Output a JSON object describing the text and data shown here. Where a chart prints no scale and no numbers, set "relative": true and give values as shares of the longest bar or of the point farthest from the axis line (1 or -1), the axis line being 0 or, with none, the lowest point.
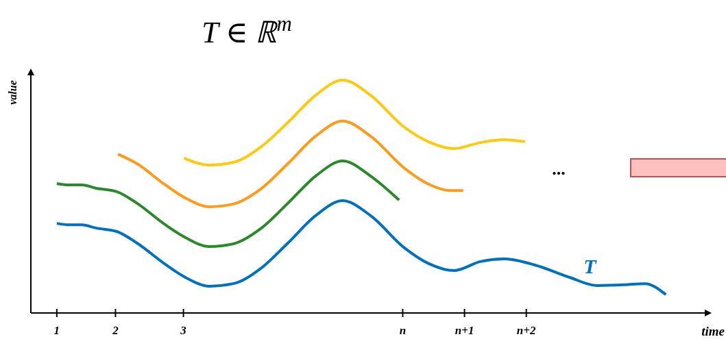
{
  "chart_data": {
    "type": "line",
    "title": "T ∈ ℝ$^{m}$",
    "xlabel": "time",
    "ylabel": "value",
    "relative": true,
    "legend": false,
    "marker": "none",
    "line_style": "solid",
    "xlim": [
      0.58,
      11.6
    ],
    "xticks": [
      1,
      {
        "value": 1.95,
        "label": "2"
      },
      {
        "value": 3.05,
        "label": "3"
      },
      {
        "value": 6.6,
        "label": "n"
      },
      {
        "value": 7.6,
        "label": "n+1"
      },
      {
        "value": 8.6,
        "label": "n+2"
      }
    ],
    "annotations": [
      "..."
    ],
    "series": [
      {
        "name": "T",
        "color": "#0070c0",
        "x": [
          1,
          1.19,
          1.41,
          1.63,
          1.97,
          2.3,
          2.74,
          3.08,
          3.47,
          3.86,
          4.3,
          4.74,
          5.19,
          5.63,
          6.08,
          6.63,
          7.02,
          7.43,
          7.86,
          8.24,
          8.74,
          9.3,
          9.74,
          10.19,
          10.52,
          10.86
        ],
        "values": [
          0.385,
          0.379,
          0.379,
          0.365,
          0.35,
          0.3,
          0.212,
          0.153,
          0.115,
          0.126,
          0.191,
          0.3,
          0.418,
          0.482,
          0.418,
          0.279,
          0.212,
          0.182,
          0.221,
          0.232,
          0.206,
          0.153,
          0.118,
          0.121,
          0.126,
          0.079
        ]
      },
      {
        "color": "#2a8a2a",
        "x": [
          1,
          1.19,
          1.41,
          1.63,
          1.97,
          2.3,
          2.74,
          3.08,
          3.47,
          3.86,
          4.3,
          4.74,
          5.19,
          5.63,
          6.08,
          6.54
        ],
        "values": [
          0.556,
          0.55,
          0.55,
          0.536,
          0.521,
          0.471,
          0.382,
          0.324,
          0.285,
          0.297,
          0.362,
          0.471,
          0.588,
          0.653,
          0.588,
          0.485
        ]
      },
      {
        "color": "#ff9a1a",
        "x": [
          1.99,
          2.3,
          2.74,
          3.08,
          3.47,
          3.86,
          4.3,
          4.74,
          5.19,
          5.63,
          6.08,
          6.63,
          7.02,
          7.36,
          7.58
        ],
        "values": [
          0.682,
          0.641,
          0.553,
          0.494,
          0.456,
          0.468,
          0.532,
          0.641,
          0.759,
          0.824,
          0.759,
          0.621,
          0.553,
          0.526,
          0.526
        ]
      },
      {
        "color": "#ffc90e",
        "x": [
          3.06,
          3.47,
          3.86,
          4.3,
          4.74,
          5.19,
          5.63,
          6.08,
          6.63,
          7.02,
          7.43,
          7.86,
          8.24,
          8.58
        ],
        "values": [
          0.665,
          0.635,
          0.647,
          0.712,
          0.818,
          0.935,
          1.0,
          0.935,
          0.797,
          0.735,
          0.706,
          0.732,
          0.744,
          0.735
        ]
      }
    ]
  }
}
